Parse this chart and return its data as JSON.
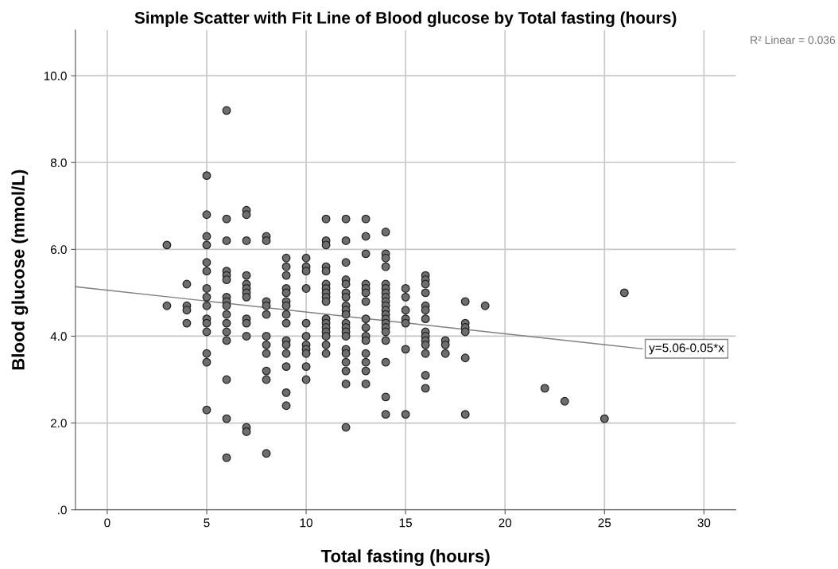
{
  "chart_data": {
    "type": "scatter",
    "title": "Simple Scatter with Fit Line of Blood glucose by Total fasting (hours)",
    "xlabel": "Total fasting (hours)",
    "ylabel": "Blood glucose (mmol/L)",
    "xlim": [
      -1.6,
      31.6
    ],
    "ylim": [
      0,
      11.05
    ],
    "xticks": [
      0,
      5,
      10,
      15,
      20,
      25,
      30
    ],
    "yticks": [
      {
        "value": 0,
        "label": ".0"
      },
      {
        "value": 2,
        "label": "2.0"
      },
      {
        "value": 4,
        "label": "4.0"
      },
      {
        "value": 6,
        "label": "6.0"
      },
      {
        "value": 8,
        "label": "8.0"
      },
      {
        "value": 10,
        "label": "10.0"
      }
    ],
    "grid": true,
    "marker": "circle",
    "legend": false,
    "series": [
      {
        "color": "#6e6e6e",
        "x": [
          3,
          3,
          4,
          4,
          4,
          4,
          5,
          5,
          5,
          5,
          5,
          5,
          5,
          5,
          5,
          5,
          5,
          5,
          5,
          5,
          5,
          6,
          6,
          6,
          6,
          6,
          6,
          6,
          6,
          6,
          6,
          6,
          6,
          6,
          6,
          6,
          6,
          7,
          7,
          7,
          7,
          7,
          7,
          7,
          7,
          7,
          7,
          7,
          7,
          7,
          8,
          8,
          8,
          8,
          8,
          8,
          8,
          8,
          8,
          8,
          8,
          9,
          9,
          9,
          9,
          9,
          9,
          9,
          9,
          9,
          9,
          9,
          9,
          9,
          9,
          9,
          10,
          10,
          10,
          10,
          10,
          10,
          10,
          10,
          10,
          10,
          10,
          11,
          11,
          11,
          11,
          11,
          11,
          11,
          11,
          11,
          11,
          11,
          11,
          11,
          11,
          11,
          11,
          11,
          12,
          12,
          12,
          12,
          12,
          12,
          12,
          12,
          12,
          12,
          12,
          12,
          12,
          12,
          12,
          12,
          12,
          12,
          12,
          12,
          13,
          13,
          13,
          13,
          13,
          13,
          13,
          13,
          13,
          13,
          13,
          13,
          13,
          13,
          13,
          14,
          14,
          14,
          14,
          14,
          14,
          14,
          14,
          14,
          14,
          14,
          14,
          14,
          14,
          14,
          14,
          14,
          14,
          14,
          14,
          15,
          15,
          15,
          15,
          15,
          15,
          15,
          16,
          16,
          16,
          16,
          16,
          16,
          16,
          16,
          16,
          16,
          16,
          16,
          16,
          16,
          17,
          17,
          17,
          18,
          18,
          18,
          18,
          18,
          18,
          19,
          22,
          23,
          25,
          26
        ],
        "values": [
          6.1,
          4.7,
          5.2,
          4.7,
          4.6,
          4.3,
          7.7,
          6.8,
          6.3,
          6.1,
          5.7,
          5.5,
          5.1,
          4.9,
          4.7,
          4.4,
          4.3,
          4.1,
          3.6,
          3.4,
          2.3,
          9.2,
          6.7,
          6.2,
          5.5,
          5.4,
          5.3,
          4.9,
          4.8,
          4.7,
          4.5,
          4.3,
          4.1,
          3.9,
          3.0,
          2.1,
          1.2,
          6.9,
          6.8,
          6.2,
          5.4,
          5.2,
          5.1,
          5.0,
          4.9,
          4.4,
          4.3,
          4.0,
          1.9,
          1.8,
          6.3,
          6.2,
          4.8,
          4.7,
          4.5,
          4.0,
          3.8,
          3.6,
          3.2,
          3.0,
          1.3,
          5.8,
          5.6,
          5.4,
          5.1,
          5.0,
          4.8,
          4.7,
          4.5,
          4.3,
          3.9,
          3.8,
          3.6,
          3.3,
          2.7,
          2.4,
          5.8,
          5.6,
          5.5,
          5.1,
          4.3,
          4.0,
          3.8,
          3.7,
          3.6,
          3.3,
          3.0,
          6.7,
          6.2,
          6.1,
          5.6,
          5.5,
          5.2,
          5.1,
          5.0,
          4.9,
          4.8,
          4.4,
          4.3,
          4.2,
          4.1,
          4.0,
          3.8,
          3.6,
          6.7,
          6.2,
          5.7,
          5.3,
          5.2,
          5.0,
          4.9,
          4.7,
          4.6,
          4.5,
          4.3,
          4.2,
          4.1,
          4.0,
          3.7,
          3.6,
          3.4,
          3.2,
          2.9,
          1.9,
          6.7,
          6.3,
          5.9,
          5.2,
          5.1,
          5.0,
          4.8,
          4.4,
          4.2,
          4.0,
          3.9,
          3.6,
          3.4,
          3.2,
          2.9,
          6.4,
          5.9,
          5.8,
          5.6,
          5.2,
          5.1,
          5.0,
          4.9,
          4.8,
          4.7,
          4.6,
          4.5,
          4.4,
          4.3,
          4.2,
          4.1,
          3.9,
          3.4,
          2.6,
          2.2,
          5.1,
          4.9,
          4.6,
          4.4,
          4.3,
          3.7,
          2.2,
          5.4,
          5.3,
          5.2,
          5.0,
          4.7,
          4.6,
          4.4,
          4.1,
          4.0,
          3.9,
          3.8,
          3.6,
          3.1,
          2.8,
          3.9,
          3.8,
          3.6,
          4.8,
          4.3,
          4.2,
          4.1,
          3.5,
          2.2,
          4.7,
          2.8,
          2.5,
          2.1,
          5.0
        ]
      },
      {
        "type": "line",
        "color": "#808080",
        "x": [
          -1.6,
          26.9
        ],
        "values": [
          5.14,
          3.71
        ],
        "marker": "none"
      }
    ],
    "annotations": [
      {
        "text": "y=5.06-0.05*x",
        "x": 26.9,
        "y": 3.71
      },
      "R² Linear = 0.036"
    ]
  }
}
